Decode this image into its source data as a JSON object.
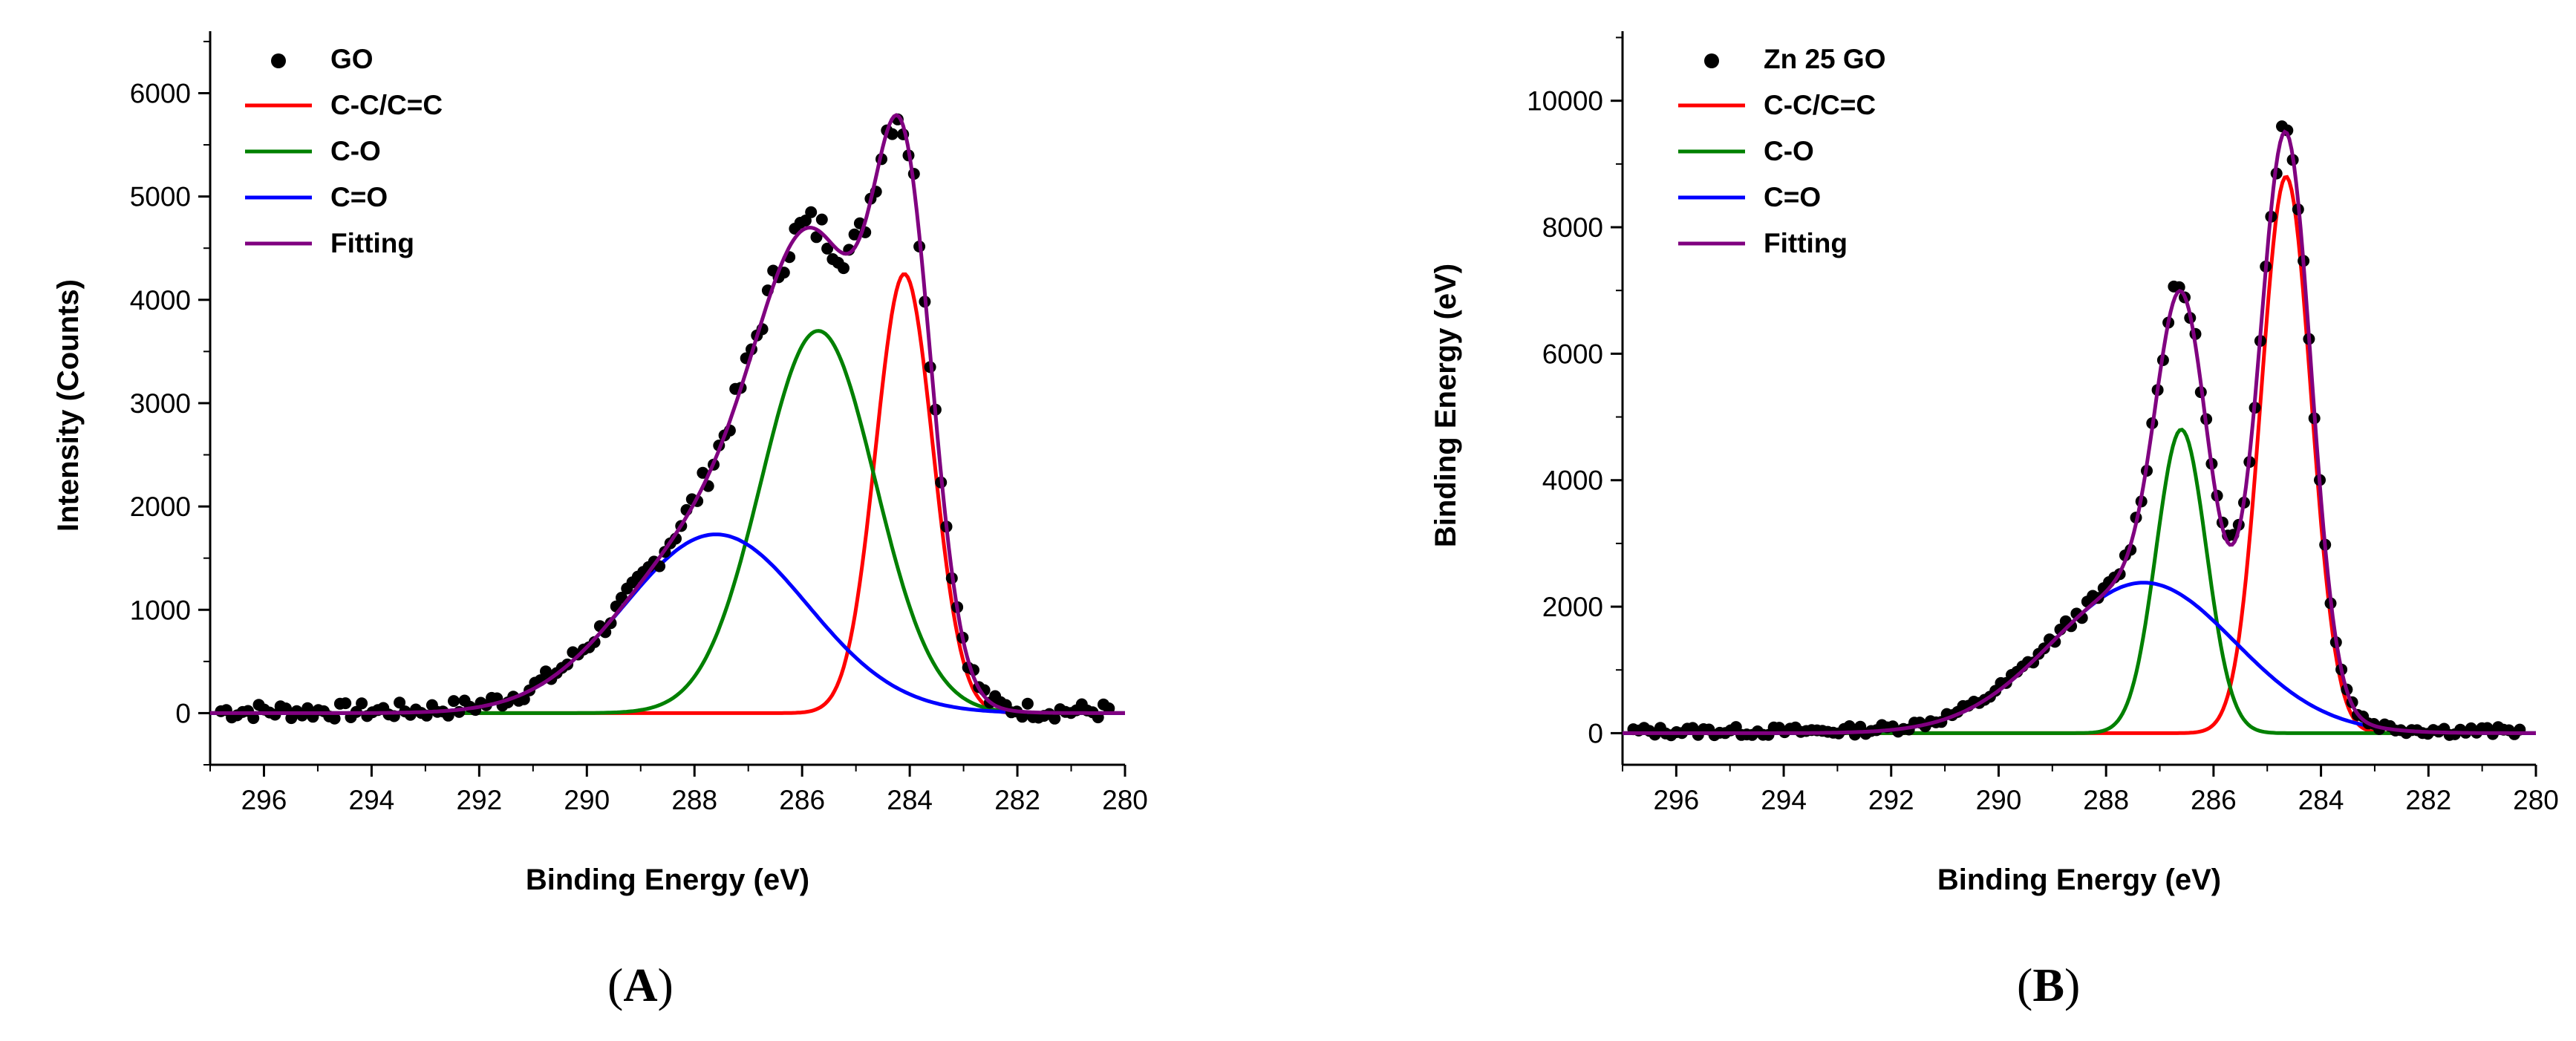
{
  "chart_data": [
    {
      "panel": "(A)",
      "type": "line",
      "title": "",
      "xlabel": "Binding Energy (eV)",
      "ylabel": "Intensity (Counts)",
      "xlim": [
        297,
        280
      ],
      "ylim": [
        -500,
        6600
      ],
      "xticks": [
        296,
        294,
        292,
        290,
        288,
        286,
        284,
        282,
        280
      ],
      "yticks": [
        0,
        1000,
        2000,
        3000,
        4000,
        5000,
        6000
      ],
      "legend_position": "top-left",
      "legend": [
        "GO",
        "C-C/C=C",
        "C-O",
        "C=O",
        "Fitting"
      ],
      "components": [
        {
          "name": "C-C/C=C",
          "color": "#ff0000",
          "center": 284.1,
          "amplitude": 4250,
          "fwhm": 1.25
        },
        {
          "name": "C-O",
          "color": "#008000",
          "center": 285.7,
          "amplitude": 3700,
          "fwhm": 2.5
        },
        {
          "name": "C=O",
          "color": "#0000ff",
          "center": 287.6,
          "amplitude": 1730,
          "fwhm": 4.0
        }
      ],
      "fit": {
        "name": "Fitting",
        "color": "#800080"
      },
      "data": {
        "name": "GO",
        "color": "#000000",
        "x_range": [
          296.8,
          280.3
        ],
        "n_points": 165,
        "noise": 80,
        "baseline": 20
      }
    },
    {
      "panel": "(B)",
      "type": "line",
      "title": "",
      "xlabel": "Binding Energy (eV)",
      "ylabel": "Binding Energy (eV)",
      "xlim": [
        297,
        280
      ],
      "ylim": [
        -500,
        11100
      ],
      "xticks": [
        296,
        294,
        292,
        290,
        288,
        286,
        284,
        282,
        280
      ],
      "yticks": [
        0,
        2000,
        4000,
        6000,
        8000,
        10000
      ],
      "legend_position": "top-left",
      "legend": [
        "Zn 25 GO",
        "C-C/C=C",
        "C-O",
        "C=O",
        "Fitting"
      ],
      "components": [
        {
          "name": "C-C/C=C",
          "color": "#ff0000",
          "center": 284.65,
          "amplitude": 8800,
          "fwhm": 1.1
        },
        {
          "name": "C-O",
          "color": "#008000",
          "center": 286.6,
          "amplitude": 4800,
          "fwhm": 1.1
        },
        {
          "name": "C=O",
          "color": "#0000ff",
          "center": 287.3,
          "amplitude": 2380,
          "fwhm": 4.0
        }
      ],
      "fit": {
        "name": "Fitting",
        "color": "#800080"
      },
      "data": {
        "name": "Zn 25 GO",
        "color": "#000000",
        "x_range": [
          296.8,
          280.3
        ],
        "n_points": 165,
        "noise": 70,
        "baseline": 30
      }
    }
  ],
  "panel_labels": {
    "a": "A",
    "b": "B"
  }
}
